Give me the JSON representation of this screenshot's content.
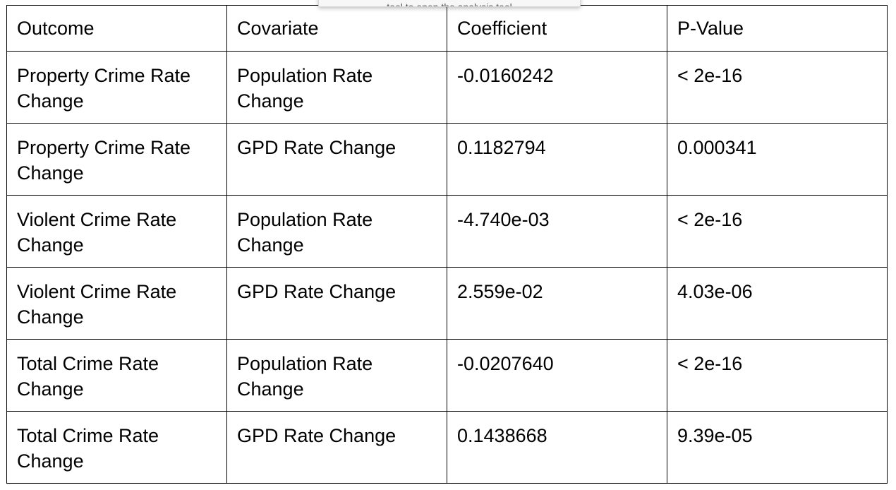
{
  "tooltip": {
    "text": "tool to open the analysis tool"
  },
  "table": {
    "headers": [
      "Outcome",
      "Covariate",
      "Coefficient",
      "P-Value"
    ],
    "rows": [
      {
        "outcome": "Property Crime Rate Change",
        "covariate": "Population Rate Change",
        "coefficient": "-0.0160242",
        "p_value": "< 2e-16"
      },
      {
        "outcome": "Property Crime Rate Change",
        "covariate": "GPD Rate Change",
        "coefficient": "0.1182794",
        "p_value": "0.000341"
      },
      {
        "outcome": "Violent Crime Rate Change",
        "covariate": "Population Rate Change",
        "coefficient": "-4.740e-03",
        "p_value": "< 2e-16"
      },
      {
        "outcome": "Violent Crime Rate Change",
        "covariate": "GPD Rate Change",
        "coefficient": "2.559e-02",
        "p_value": "4.03e-06"
      },
      {
        "outcome": "Total Crime Rate Change",
        "covariate": "Population Rate Change",
        "coefficient": "-0.0207640",
        "p_value": "< 2e-16"
      },
      {
        "outcome": "Total Crime Rate Change",
        "covariate": "GPD Rate Change",
        "coefficient": "0.1438668",
        "p_value": "9.39e-05"
      }
    ]
  }
}
